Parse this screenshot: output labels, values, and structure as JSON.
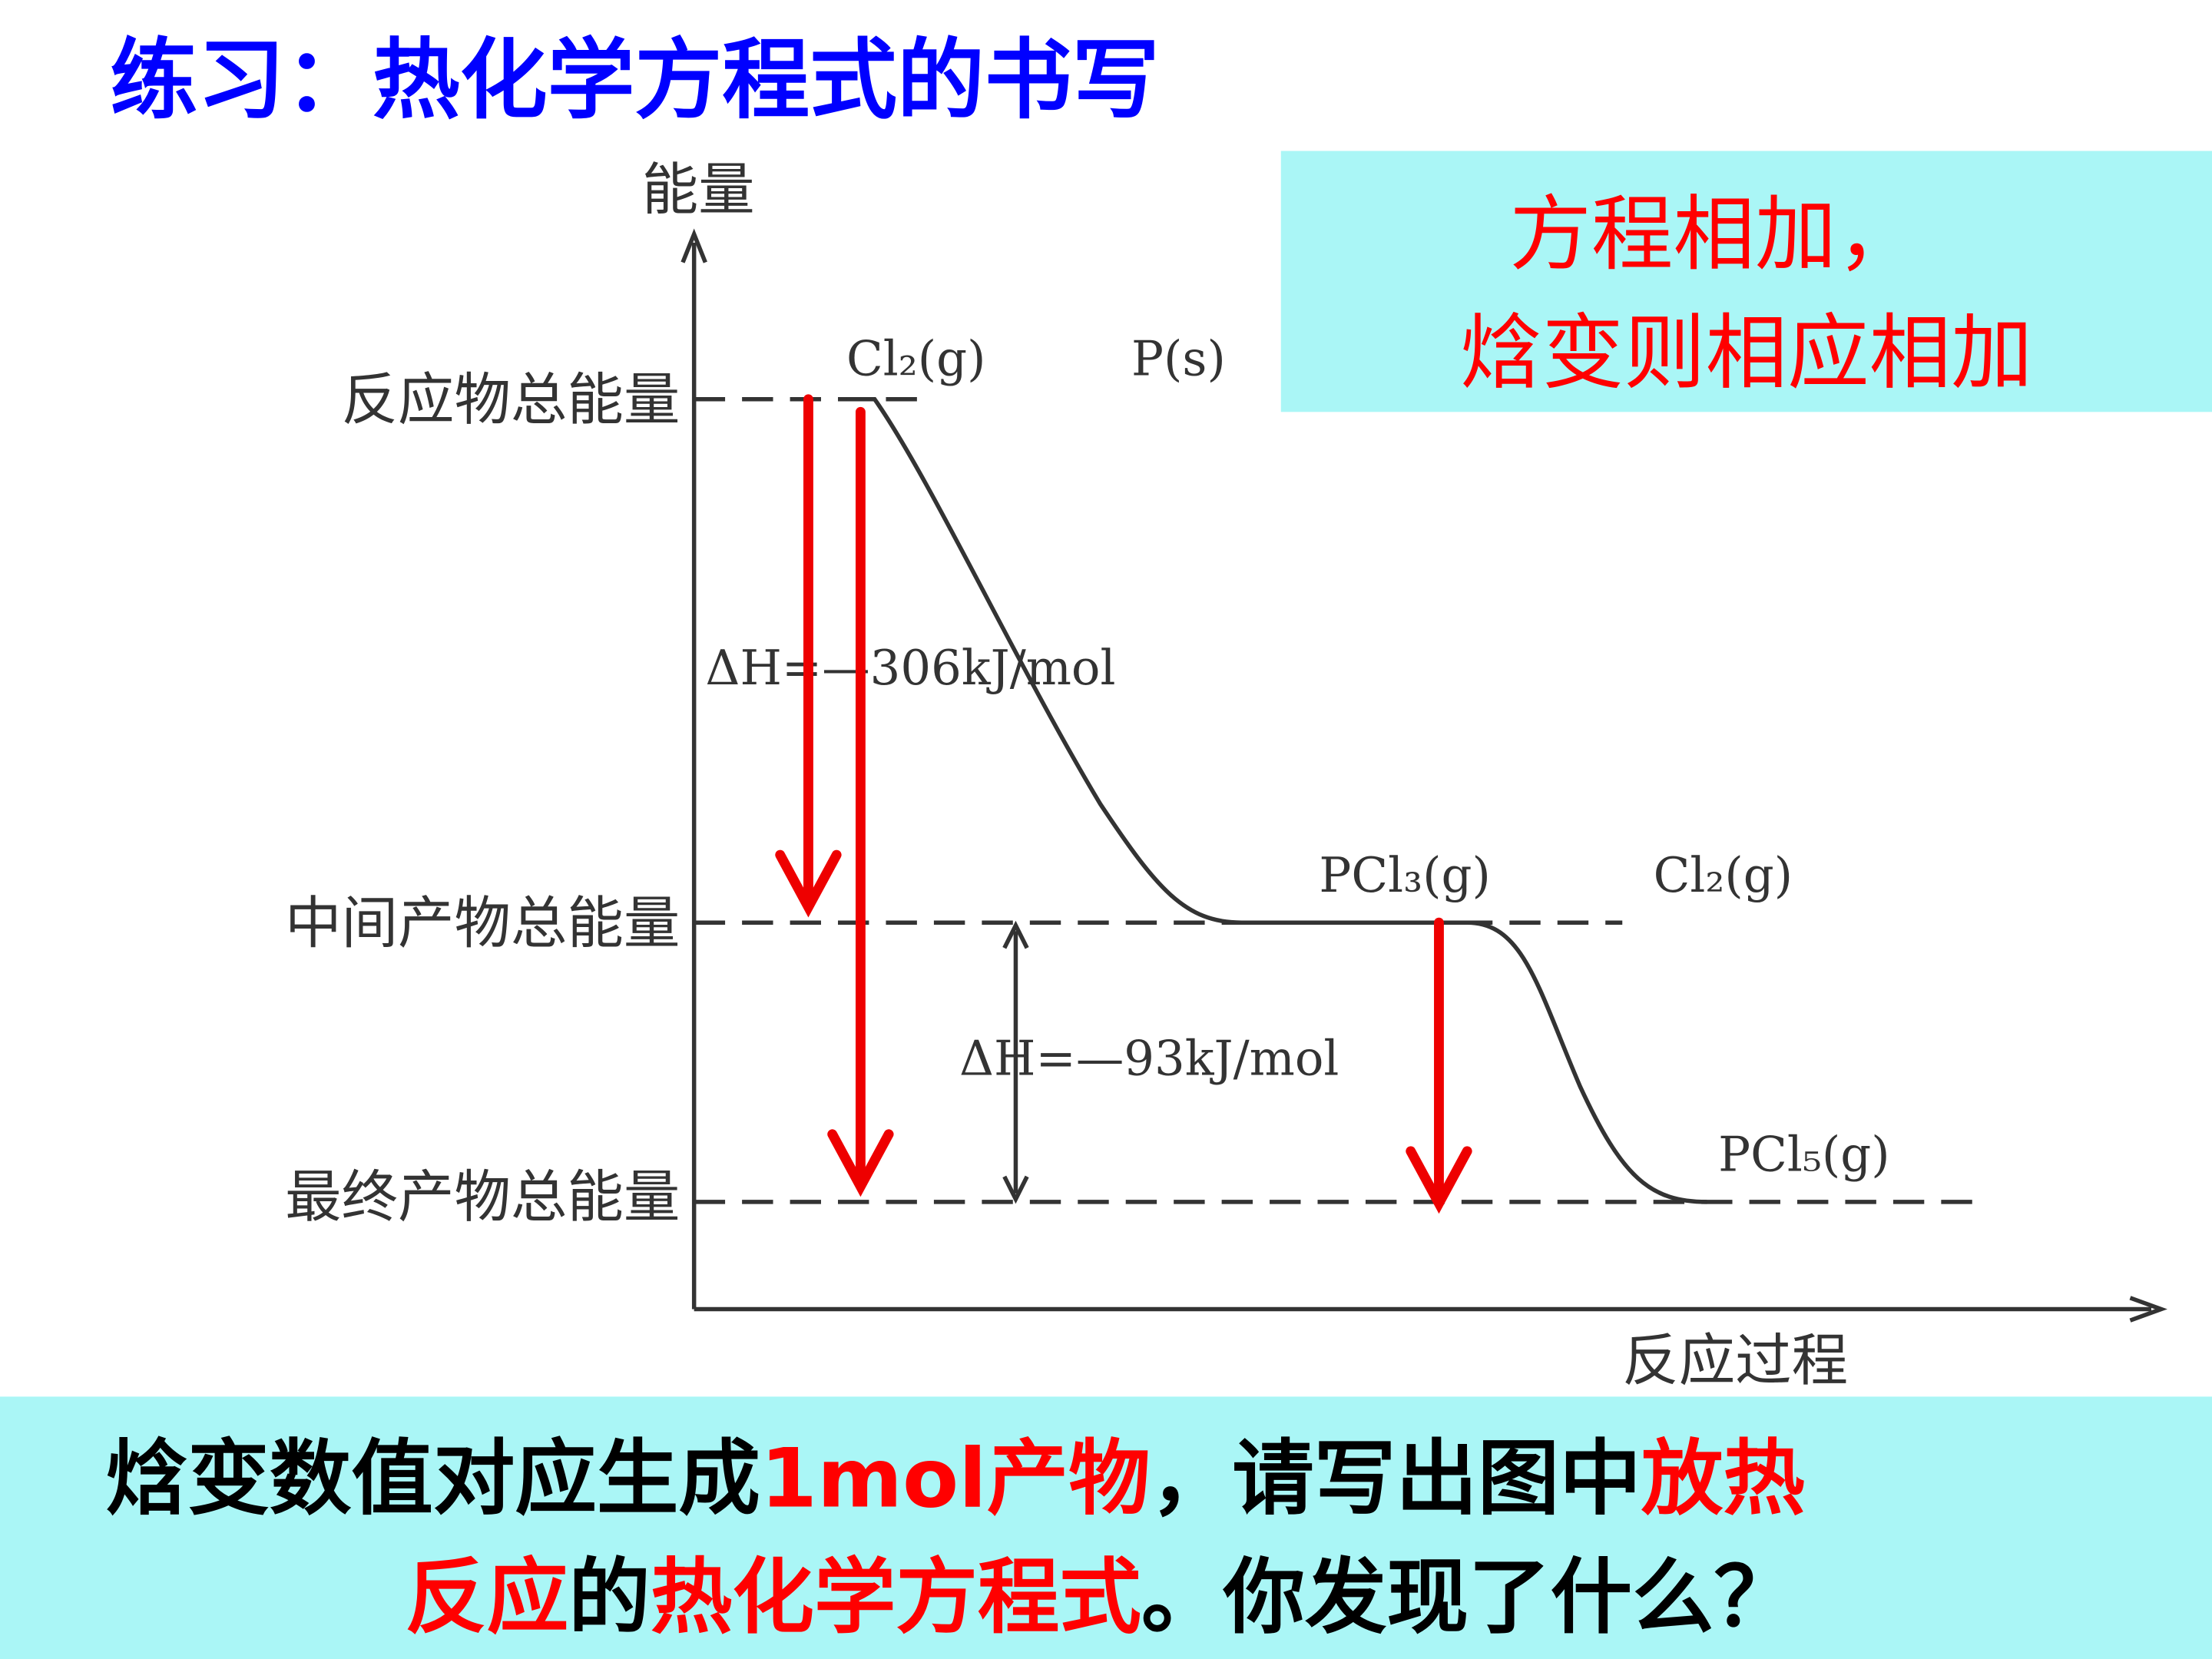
{
  "title": "练习：热化学方程式的书写",
  "callout": {
    "lines": [
      "方程相加，",
      "焓变则相应相加"
    ]
  },
  "diagram": {
    "y_axis_label": "能量",
    "x_axis_label": "反应过程",
    "levels": [
      "反应物总能量",
      "中间产物总能量",
      "最终产物总能量"
    ],
    "species": [
      "Cl₂(g)",
      "P(s)",
      "PCl₃(g)",
      "Cl₂(g)",
      "PCl₅(g)"
    ],
    "delta_h": [
      "ΔH=—306kJ/mol",
      "ΔH=—93kJ/mol"
    ]
  },
  "question": {
    "lines": [
      [
        {
          "text": "焓变数值对应生成",
          "color": "#000000"
        },
        {
          "text": "1mol",
          "color": "#ff0000"
        },
        {
          "text": "产物",
          "color": "#ff0000"
        },
        {
          "text": "，请写出图中",
          "color": "#000000"
        },
        {
          "text": "放热",
          "color": "#ff0000"
        }
      ],
      [
        {
          "text": "反应",
          "color": "#ff0000"
        },
        {
          "text": "的",
          "color": "#000000"
        },
        {
          "text": "热化学方程式",
          "color": "#ff0000"
        },
        {
          "text": "。你发现了什么？",
          "color": "#000000"
        }
      ]
    ]
  }
}
